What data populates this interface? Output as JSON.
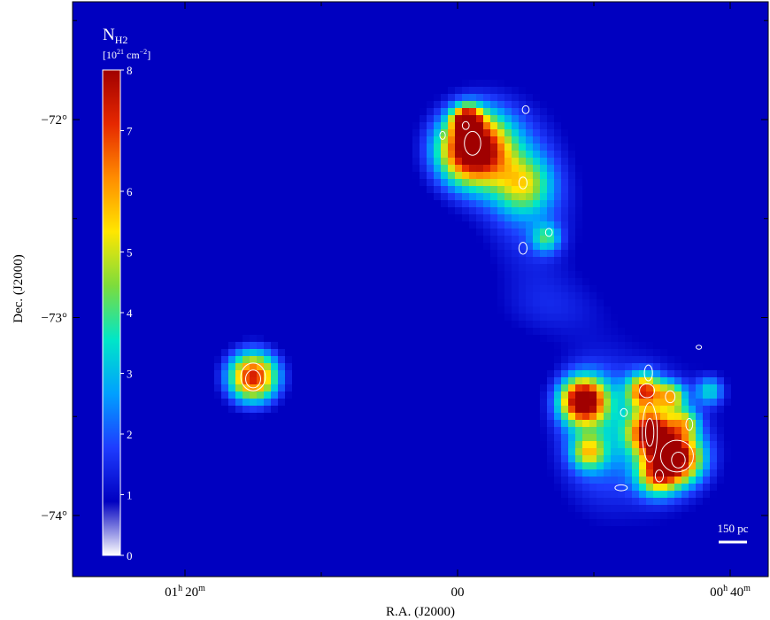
{
  "chart_data": {
    "type": "heatmap",
    "title": "",
    "xlabel": "R.A. (J2000)",
    "ylabel": "Dec. (J2000)",
    "x_ticks": [
      {
        "label": "01",
        "sup1": "h",
        "sub": "20",
        "sup2": "m",
        "ra_min": 80
      },
      {
        "label": "00",
        "sup1": "",
        "sub": "",
        "sup2": "",
        "ra_min": 60
      },
      {
        "label": "00",
        "sup1": "h",
        "sub": "40",
        "sup2": "m",
        "ra_min": 40
      }
    ],
    "y_ticks": [
      {
        "label": "−72°",
        "dec_deg": -72
      },
      {
        "label": "−73°",
        "dec_deg": -73
      },
      {
        "label": "−74°",
        "dec_deg": -74
      }
    ],
    "colorbar": {
      "quantity": "N",
      "quantity_sub": "H2",
      "unit_pre": "[10",
      "unit_exp1": "21",
      "unit_mid": " cm",
      "unit_exp2": "−2",
      "unit_post": "]",
      "min": 0,
      "max": 8,
      "ticks": [
        "0",
        "1",
        "2",
        "3",
        "4",
        "5",
        "6",
        "7",
        "8"
      ],
      "colormap": [
        "#ffffff",
        "#0000c0",
        "#1e3cff",
        "#00a0ff",
        "#00e6c8",
        "#7ddc3c",
        "#ffe600",
        "#ff8c00",
        "#e62800",
        "#a00000"
      ]
    },
    "scale_bar": {
      "label": "150 pc"
    },
    "background_value": 0.4,
    "clouds": [
      {
        "ra_min": 75.0,
        "dec_deg": -73.3,
        "peak": 7.0,
        "size_deg": 0.09
      },
      {
        "ra_min": 58.9,
        "dec_deg": -72.15,
        "peak": 7.5,
        "size_deg": 0.12
      },
      {
        "ra_min": 59.3,
        "dec_deg": -72.0,
        "peak": 5.5,
        "size_deg": 0.05
      },
      {
        "ra_min": 55.2,
        "dec_deg": -72.33,
        "peak": 3.0,
        "size_deg": 0.1
      },
      {
        "ra_min": 53.5,
        "dec_deg": -72.6,
        "peak": 2.5,
        "size_deg": 0.05
      },
      {
        "ra_min": 50.8,
        "dec_deg": -73.42,
        "peak": 7.5,
        "size_deg": 0.08
      },
      {
        "ra_min": 45.8,
        "dec_deg": -73.58,
        "peak": 6.5,
        "size_deg": 0.08
      },
      {
        "ra_min": 46.3,
        "dec_deg": -73.37,
        "peak": 5.5,
        "size_deg": 0.06
      },
      {
        "ra_min": 43.9,
        "dec_deg": -73.71,
        "peak": 7.0,
        "size_deg": 0.09
      },
      {
        "ra_min": 44.3,
        "dec_deg": -73.4,
        "peak": 4.0,
        "size_deg": 0.05
      },
      {
        "ra_min": 45.4,
        "dec_deg": -73.8,
        "peak": 4.0,
        "size_deg": 0.07
      },
      {
        "ra_min": 50.4,
        "dec_deg": -73.68,
        "peak": 3.5,
        "size_deg": 0.06
      },
      {
        "ra_min": 43.3,
        "dec_deg": -73.53,
        "peak": 3.0,
        "size_deg": 0.05
      },
      {
        "ra_min": 41.5,
        "dec_deg": -73.37,
        "peak": 2.5,
        "size_deg": 0.05
      }
    ],
    "diffuse": [
      {
        "ra_min": 57.5,
        "dec_deg": -72.15,
        "sx_min": 3.0,
        "sy_deg": 0.2,
        "peak": 1.8
      },
      {
        "ra_min": 54.5,
        "dec_deg": -72.5,
        "sx_min": 2.5,
        "sy_deg": 0.25,
        "peak": 1.3
      },
      {
        "ra_min": 53.0,
        "dec_deg": -72.95,
        "sx_min": 3.0,
        "sy_deg": 0.12,
        "peak": 0.8
      },
      {
        "ra_min": 46.5,
        "dec_deg": -73.6,
        "sx_min": 4.0,
        "sy_deg": 0.3,
        "peak": 1.5
      },
      {
        "ra_min": 50.0,
        "dec_deg": -73.55,
        "sx_min": 2.0,
        "sy_deg": 0.25,
        "peak": 1.2
      }
    ],
    "contours": [
      {
        "ra_min": 75.0,
        "dec_deg": -73.3,
        "rx_min": 0.9,
        "ry_deg": 0.07
      },
      {
        "ra_min": 75.0,
        "dec_deg": -73.31,
        "rx_min": 0.55,
        "ry_deg": 0.045
      },
      {
        "ra_min": 58.9,
        "dec_deg": -72.12,
        "rx_min": 0.6,
        "ry_deg": 0.06
      },
      {
        "ra_min": 59.4,
        "dec_deg": -72.03,
        "rx_min": 0.25,
        "ry_deg": 0.02
      },
      {
        "ra_min": 61.1,
        "dec_deg": -72.08,
        "rx_min": 0.2,
        "ry_deg": 0.02
      },
      {
        "ra_min": 55.2,
        "dec_deg": -72.32,
        "rx_min": 0.3,
        "ry_deg": 0.03
      },
      {
        "ra_min": 55.2,
        "dec_deg": -72.65,
        "rx_min": 0.3,
        "ry_deg": 0.03
      },
      {
        "ra_min": 53.3,
        "dec_deg": -72.57,
        "rx_min": 0.25,
        "ry_deg": 0.02
      },
      {
        "ra_min": 55.0,
        "dec_deg": -71.95,
        "rx_min": 0.25,
        "ry_deg": 0.02
      },
      {
        "ra_min": 46.1,
        "dec_deg": -73.37,
        "rx_min": 0.55,
        "ry_deg": 0.035
      },
      {
        "ra_min": 45.9,
        "dec_deg": -73.58,
        "rx_min": 0.55,
        "ry_deg": 0.15
      },
      {
        "ra_min": 45.9,
        "dec_deg": -73.58,
        "rx_min": 0.3,
        "ry_deg": 0.07
      },
      {
        "ra_min": 44.4,
        "dec_deg": -73.4,
        "rx_min": 0.35,
        "ry_deg": 0.03
      },
      {
        "ra_min": 43.9,
        "dec_deg": -73.7,
        "rx_min": 1.2,
        "ry_deg": 0.08
      },
      {
        "ra_min": 43.8,
        "dec_deg": -73.72,
        "rx_min": 0.5,
        "ry_deg": 0.04
      },
      {
        "ra_min": 46.0,
        "dec_deg": -73.28,
        "rx_min": 0.3,
        "ry_deg": 0.04
      },
      {
        "ra_min": 47.8,
        "dec_deg": -73.48,
        "rx_min": 0.25,
        "ry_deg": 0.02
      },
      {
        "ra_min": 45.2,
        "dec_deg": -73.8,
        "rx_min": 0.3,
        "ry_deg": 0.03
      },
      {
        "ra_min": 48.0,
        "dec_deg": -73.86,
        "rx_min": 0.45,
        "ry_deg": 0.015
      },
      {
        "ra_min": 43.0,
        "dec_deg": -73.54,
        "rx_min": 0.25,
        "ry_deg": 0.03
      },
      {
        "ra_min": 42.3,
        "dec_deg": -73.15,
        "rx_min": 0.2,
        "ry_deg": 0.01
      }
    ]
  }
}
